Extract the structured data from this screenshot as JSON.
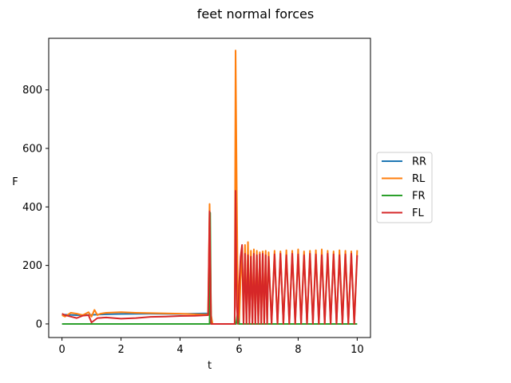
{
  "chart_data": {
    "type": "line",
    "title": "feet normal forces",
    "xlabel": "t",
    "ylabel": "F",
    "xlim": [
      -0.45,
      10.45
    ],
    "ylim": [
      -46.5,
      976.5
    ],
    "xticks": [
      0,
      2,
      4,
      6,
      8,
      10
    ],
    "yticks": [
      0,
      200,
      400,
      600,
      800
    ],
    "grid": false,
    "legend_position": "center-right outside",
    "series": [
      {
        "name": "RR",
        "color": "#1f77b4",
        "x": [
          0,
          0.5,
          1.0,
          1.5,
          2.0,
          3.0,
          4.0,
          4.98,
          5.0,
          5.02,
          5.05,
          5.9
        ],
        "y": [
          32,
          30,
          31,
          33,
          34,
          35,
          34,
          36,
          390,
          20,
          0,
          0
        ]
      },
      {
        "name": "RL",
        "color": "#ff7f0e",
        "x": [
          0,
          0.1,
          0.3,
          0.5,
          0.7,
          0.9,
          1.0,
          1.1,
          1.2,
          1.3,
          1.5,
          2.0,
          2.5,
          3.0,
          3.5,
          4.0,
          4.5,
          4.95,
          5.0,
          5.05,
          5.1,
          5.85,
          5.88,
          5.92,
          5.96,
          6.0,
          6.05,
          6.1,
          6.15,
          6.2,
          6.25,
          6.3,
          6.35,
          6.4,
          6.45,
          6.5,
          6.55,
          6.6,
          6.65,
          6.7,
          6.75,
          6.8,
          6.85,
          6.9,
          6.95,
          7.0,
          7.1,
          7.2,
          7.3,
          7.4,
          7.5,
          7.6,
          7.7,
          7.8,
          7.9,
          8.0,
          8.1,
          8.2,
          8.3,
          8.4,
          8.5,
          8.6,
          8.7,
          8.8,
          8.9,
          9.0,
          9.1,
          9.2,
          9.3,
          9.4,
          9.5,
          9.6,
          9.7,
          9.8,
          9.9,
          10.0
        ],
        "y": [
          30,
          25,
          38,
          35,
          30,
          40,
          25,
          48,
          30,
          35,
          38,
          40,
          38,
          37,
          36,
          35,
          33,
          32,
          410,
          30,
          0,
          0,
          935,
          460,
          40,
          0,
          150,
          260,
          0,
          270,
          0,
          280,
          0,
          250,
          0,
          255,
          0,
          250,
          0,
          245,
          0,
          248,
          0,
          250,
          0,
          245,
          0,
          250,
          0,
          248,
          0,
          252,
          0,
          250,
          0,
          255,
          0,
          248,
          0,
          250,
          0,
          252,
          0,
          255,
          0,
          250,
          0,
          248,
          0,
          252,
          0,
          250,
          0,
          248,
          0,
          252
        ]
      },
      {
        "name": "FR",
        "color": "#2ca02c",
        "x": [
          0,
          1.0,
          2.0,
          3.0,
          4.0,
          5.0,
          5.02,
          5.05,
          5.9,
          5.95,
          6.0,
          6.1,
          7.0,
          8.0,
          9.0,
          10.0
        ],
        "y": [
          0,
          0,
          0,
          0,
          0,
          0,
          380,
          0,
          0,
          40,
          0,
          0,
          0,
          0,
          0,
          0
        ]
      },
      {
        "name": "FL",
        "color": "#d62728",
        "x": [
          0,
          0.1,
          0.3,
          0.5,
          0.7,
          0.9,
          1.0,
          1.2,
          1.5,
          2.0,
          2.5,
          3.0,
          3.5,
          4.0,
          4.5,
          4.95,
          5.0,
          5.05,
          5.1,
          5.85,
          5.88,
          5.92,
          5.96,
          6.0,
          6.05,
          6.1,
          6.15,
          6.2,
          6.25,
          6.3,
          6.35,
          6.4,
          6.45,
          6.5,
          6.55,
          6.6,
          6.65,
          6.7,
          6.75,
          6.8,
          6.85,
          6.9,
          6.95,
          7.0,
          7.1,
          7.2,
          7.3,
          7.4,
          7.5,
          7.6,
          7.7,
          7.8,
          7.9,
          8.0,
          8.1,
          8.2,
          8.3,
          8.4,
          8.5,
          8.6,
          8.7,
          8.8,
          8.9,
          9.0,
          9.1,
          9.2,
          9.3,
          9.4,
          9.5,
          9.6,
          9.7,
          9.8,
          9.9,
          10.0
        ],
        "y": [
          35,
          30,
          25,
          20,
          28,
          30,
          5,
          20,
          22,
          18,
          20,
          24,
          25,
          27,
          28,
          30,
          385,
          0,
          0,
          0,
          455,
          60,
          0,
          130,
          230,
          270,
          0,
          240,
          0,
          235,
          0,
          230,
          0,
          240,
          0,
          235,
          0,
          238,
          0,
          240,
          0,
          235,
          0,
          230,
          0,
          238,
          0,
          240,
          0,
          235,
          0,
          240,
          0,
          238,
          0,
          235,
          0,
          240,
          0,
          238,
          0,
          235,
          0,
          240,
          0,
          238,
          0,
          235,
          0,
          238,
          0,
          240,
          0,
          235
        ]
      }
    ]
  }
}
